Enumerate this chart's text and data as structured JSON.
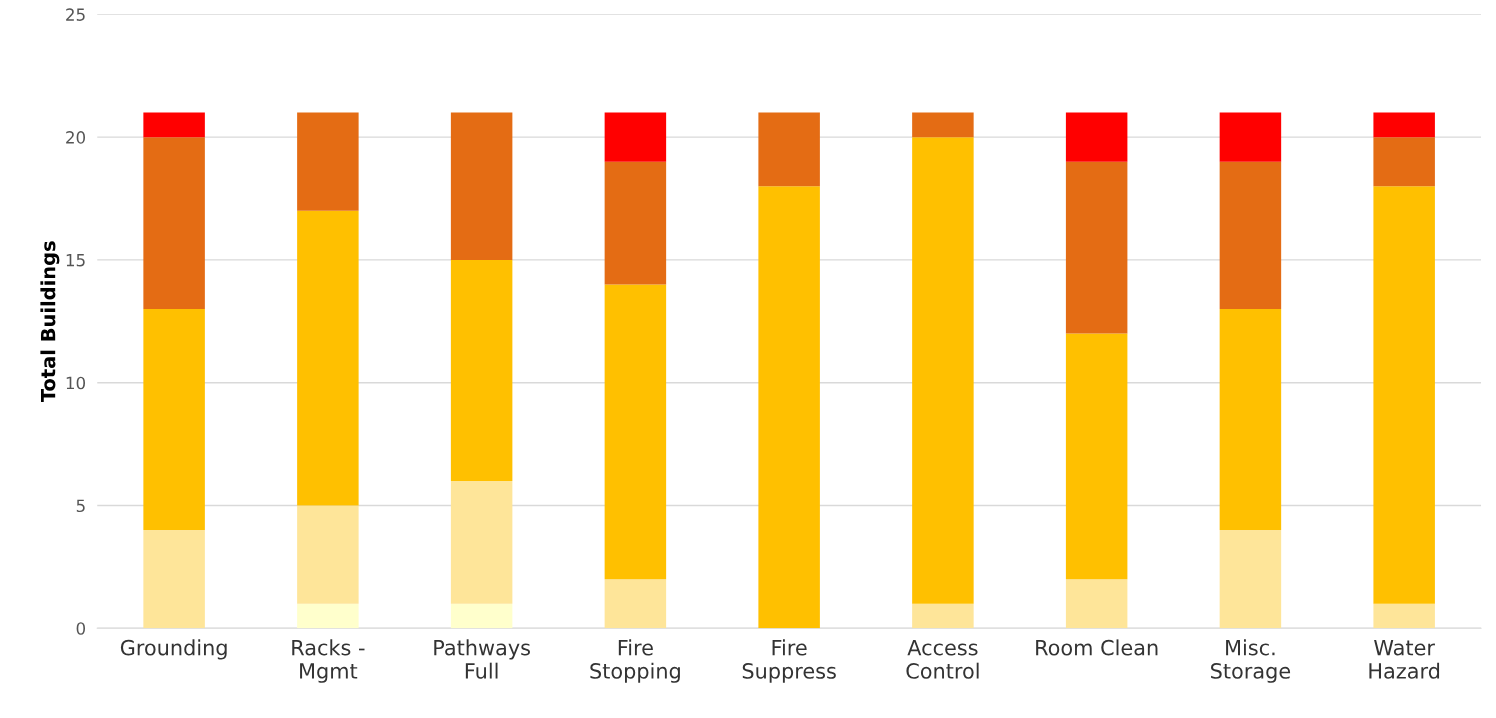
{
  "chart_data": {
    "type": "bar",
    "stacked": true,
    "ylabel": "Total Buildings",
    "categories": [
      "Grounding",
      "Racks -\nMgmt",
      "Pathways\nFull",
      "Fire\nStopping",
      "Fire\nSuppress",
      "Access\nControl",
      "Room Clean",
      "Misc.\nStorage",
      "Water\nHazard"
    ],
    "series": [
      {
        "color": "#ffffcc",
        "values": [
          0,
          1,
          1,
          0,
          0,
          0,
          0,
          0,
          0
        ]
      },
      {
        "color": "#fee599",
        "values": [
          4,
          4,
          5,
          2,
          0,
          1,
          2,
          4,
          1
        ]
      },
      {
        "color": "#ffc000",
        "values": [
          9,
          12,
          9,
          12,
          18,
          19,
          10,
          9,
          17
        ]
      },
      {
        "color": "#e46c14",
        "values": [
          7,
          4,
          6,
          5,
          3,
          1,
          7,
          6,
          2
        ]
      },
      {
        "color": "#ff0000",
        "values": [
          1,
          0,
          0,
          2,
          0,
          0,
          2,
          2,
          1
        ]
      }
    ],
    "ylim": [
      0,
      25
    ],
    "yticks": [
      0,
      5,
      10,
      15,
      20,
      25
    ],
    "grid": "y"
  }
}
